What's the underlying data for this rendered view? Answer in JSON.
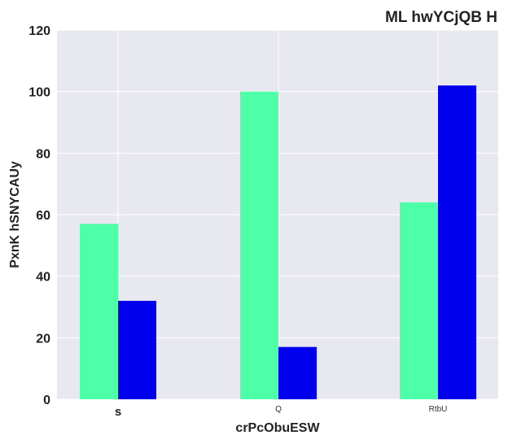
{
  "chart_data": {
    "type": "bar",
    "title": "ML hwYCjQB  H",
    "xlabel": "crPcObuESW",
    "ylabel": "PxnK hSNYCAUy",
    "categories": [
      "s",
      "Q",
      "RtbU"
    ],
    "series": [
      {
        "values": [
          57,
          100,
          64
        ],
        "color": "#4dffa6"
      },
      {
        "values": [
          32,
          17,
          102
        ],
        "color": "#0000ee"
      }
    ],
    "ylim": [
      0,
      120
    ],
    "yticks": [
      "0",
      "20",
      "40",
      "60",
      "80",
      "100",
      "120"
    ],
    "grid": true,
    "legend": "none",
    "plot_background": "#e8e8f0"
  }
}
